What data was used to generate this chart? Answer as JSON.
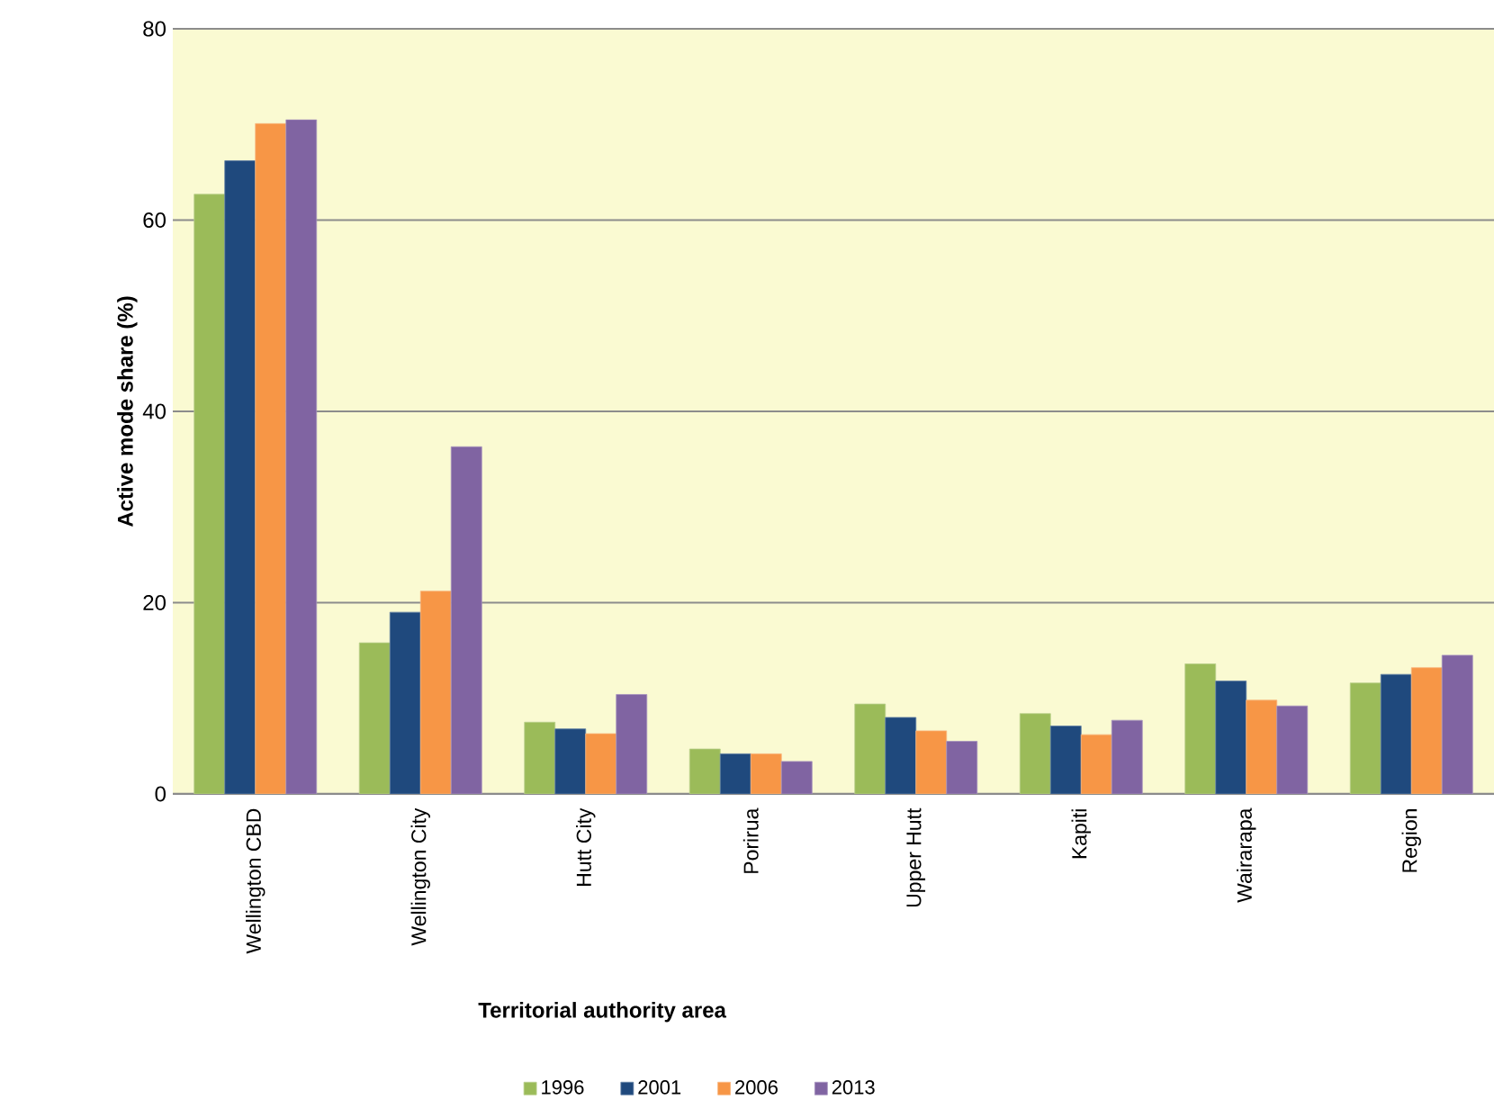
{
  "chart_data": {
    "type": "bar",
    "xlabel": "Territorial authority area",
    "ylabel": "Active mode share (%)",
    "categories": [
      "Wellington CBD",
      "Wellington City",
      "Hutt City",
      "Porirua",
      "Upper Hutt",
      "Kapiti",
      "Wairarapa",
      "Region"
    ],
    "series": [
      {
        "name": "1996",
        "color": "#9bbb59",
        "values": [
          62.7,
          15.8,
          7.5,
          4.7,
          9.4,
          8.4,
          13.6,
          11.6
        ]
      },
      {
        "name": "2001",
        "color": "#1f497d",
        "values": [
          66.2,
          19.0,
          6.8,
          4.2,
          8.0,
          7.1,
          11.8,
          12.5
        ]
      },
      {
        "name": "2006",
        "color": "#f79646",
        "values": [
          70.1,
          21.2,
          6.3,
          4.2,
          6.6,
          6.2,
          9.8,
          13.2
        ]
      },
      {
        "name": "2013",
        "color": "#8064a2",
        "values": [
          70.5,
          36.3,
          10.4,
          3.4,
          5.5,
          7.7,
          9.2,
          14.5
        ]
      }
    ],
    "ylim": [
      0,
      80
    ],
    "yticks": [
      0,
      20,
      40,
      60,
      80
    ],
    "grid": "y",
    "legend": "bottom"
  }
}
